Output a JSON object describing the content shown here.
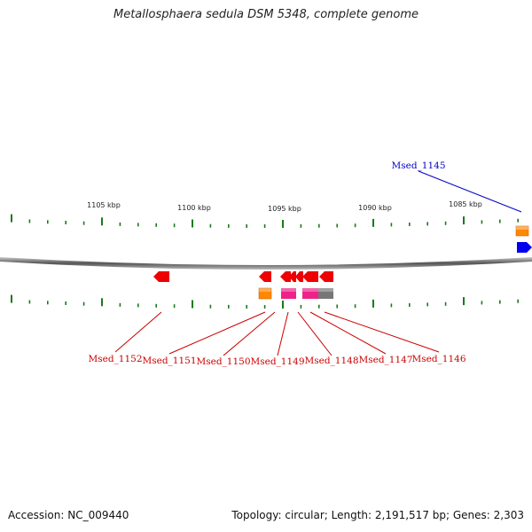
{
  "title": "Metallosphaera sedula DSM 5348, complete genome",
  "footer": {
    "accession": "Accession: NC_009440",
    "topology": "Topology: circular; Length: 2,191,517 bp; Genes: 2,303"
  },
  "scale_labels": [
    "1105 kbp",
    "1100 kbp",
    "1095 kbp",
    "1090 kbp",
    "1085 kbp"
  ],
  "gene_labels_top": [
    "Msed_1145"
  ],
  "gene_labels_bottom": [
    "Msed_1152",
    "Msed_1151",
    "Msed_1150",
    "Msed_1149",
    "Msed_1148",
    "Msed_1147",
    "Msed_1146"
  ],
  "colors": {
    "label_bottom": "#cc0000",
    "label_top": "#0000cc",
    "tick": "#1a7a1a",
    "gene_red": "#ee0000",
    "gene_blue": "#0000ee",
    "gene_orange": "#ff8800",
    "gene_pink": "#ee2288",
    "gene_gray": "#777777"
  }
}
